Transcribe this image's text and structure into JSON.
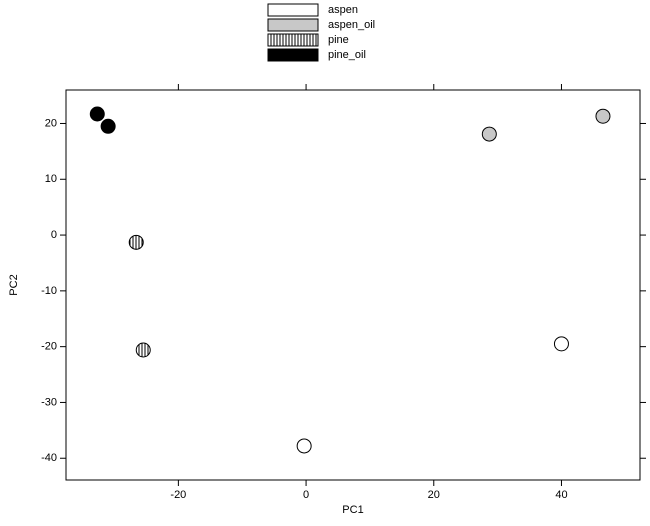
{
  "chart_data": {
    "type": "scatter",
    "x_label": "PC1",
    "y_label": "PC2",
    "xlim": [
      -37.6,
      52.3
    ],
    "ylim": [
      -43.9,
      26
    ],
    "xticks": [
      -20,
      0,
      20,
      40
    ],
    "yticks": [
      -40,
      -30,
      -20,
      -10,
      0,
      10,
      20
    ],
    "series": [
      {
        "name": "aspen",
        "color": "#ffffff",
        "x": [
          -0.3,
          40
        ],
        "values": [
          -37.8,
          -19.5
        ]
      },
      {
        "name": "aspen_oil",
        "color": "#c8c8c8",
        "x": [
          28.7,
          46.5
        ],
        "values": [
          18.1,
          21.3
        ]
      },
      {
        "name": "pine",
        "color": "#ffffff",
        "pattern": "vertical-stripes",
        "x": [
          -26.6,
          -25.5
        ],
        "values": [
          -1.3,
          -20.6
        ]
      },
      {
        "name": "pine_oil",
        "color": "#000000",
        "x": [
          -32.7,
          -31.0
        ],
        "values": [
          21.7,
          19.5
        ]
      }
    ]
  }
}
